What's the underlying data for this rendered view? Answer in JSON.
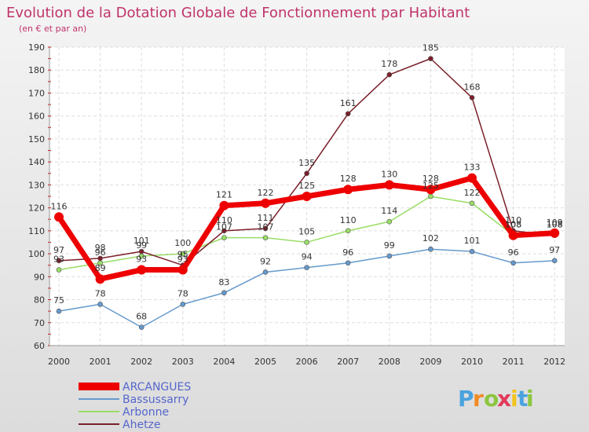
{
  "chart_data": {
    "type": "line",
    "title": "Evolution de la Dotation Globale de Fonctionnement par Habitant",
    "subtitle": "(en € et par an)",
    "xlabel": "",
    "ylabel": "",
    "ylim": [
      60,
      190
    ],
    "yticks": [
      60,
      70,
      80,
      90,
      100,
      110,
      120,
      130,
      140,
      150,
      160,
      170,
      180,
      190
    ],
    "categories": [
      "2000",
      "2001",
      "2002",
      "2003",
      "2004",
      "2005",
      "2006",
      "2007",
      "2008",
      "2009",
      "2010",
      "2011",
      "2012"
    ],
    "grid": true,
    "legend_position": "bottom-left",
    "series": [
      {
        "name": "ARCANGUES",
        "color": "#ee0000",
        "values": [
          116,
          89,
          93,
          93,
          121,
          122,
          125,
          128,
          130,
          128,
          133,
          108,
          109
        ]
      },
      {
        "name": "Bassussarry",
        "color": "#6699cc",
        "values": [
          75,
          78,
          68,
          78,
          83,
          92,
          94,
          96,
          99,
          102,
          101,
          96,
          97
        ]
      },
      {
        "name": "Arbonne",
        "color": "#99dd66",
        "values": [
          93,
          96,
          99,
          100,
          107,
          107,
          105,
          110,
          114,
          125,
          122,
          108,
          108
        ]
      },
      {
        "name": "Ahetze",
        "color": "#7a1f2a",
        "values": [
          97,
          98,
          101,
          95,
          110,
          111,
          135,
          161,
          178,
          185,
          168,
          110,
          108
        ]
      }
    ]
  },
  "brand": {
    "text": "Proxiti",
    "letters": [
      "P",
      "r",
      "o",
      "x",
      "i",
      "t",
      "i"
    ],
    "colors": [
      "#4aa3df",
      "#f08a24",
      "#8cc63f",
      "#e23a5b",
      "#f2c31b",
      "#4aa3df",
      "#8cc63f"
    ]
  }
}
